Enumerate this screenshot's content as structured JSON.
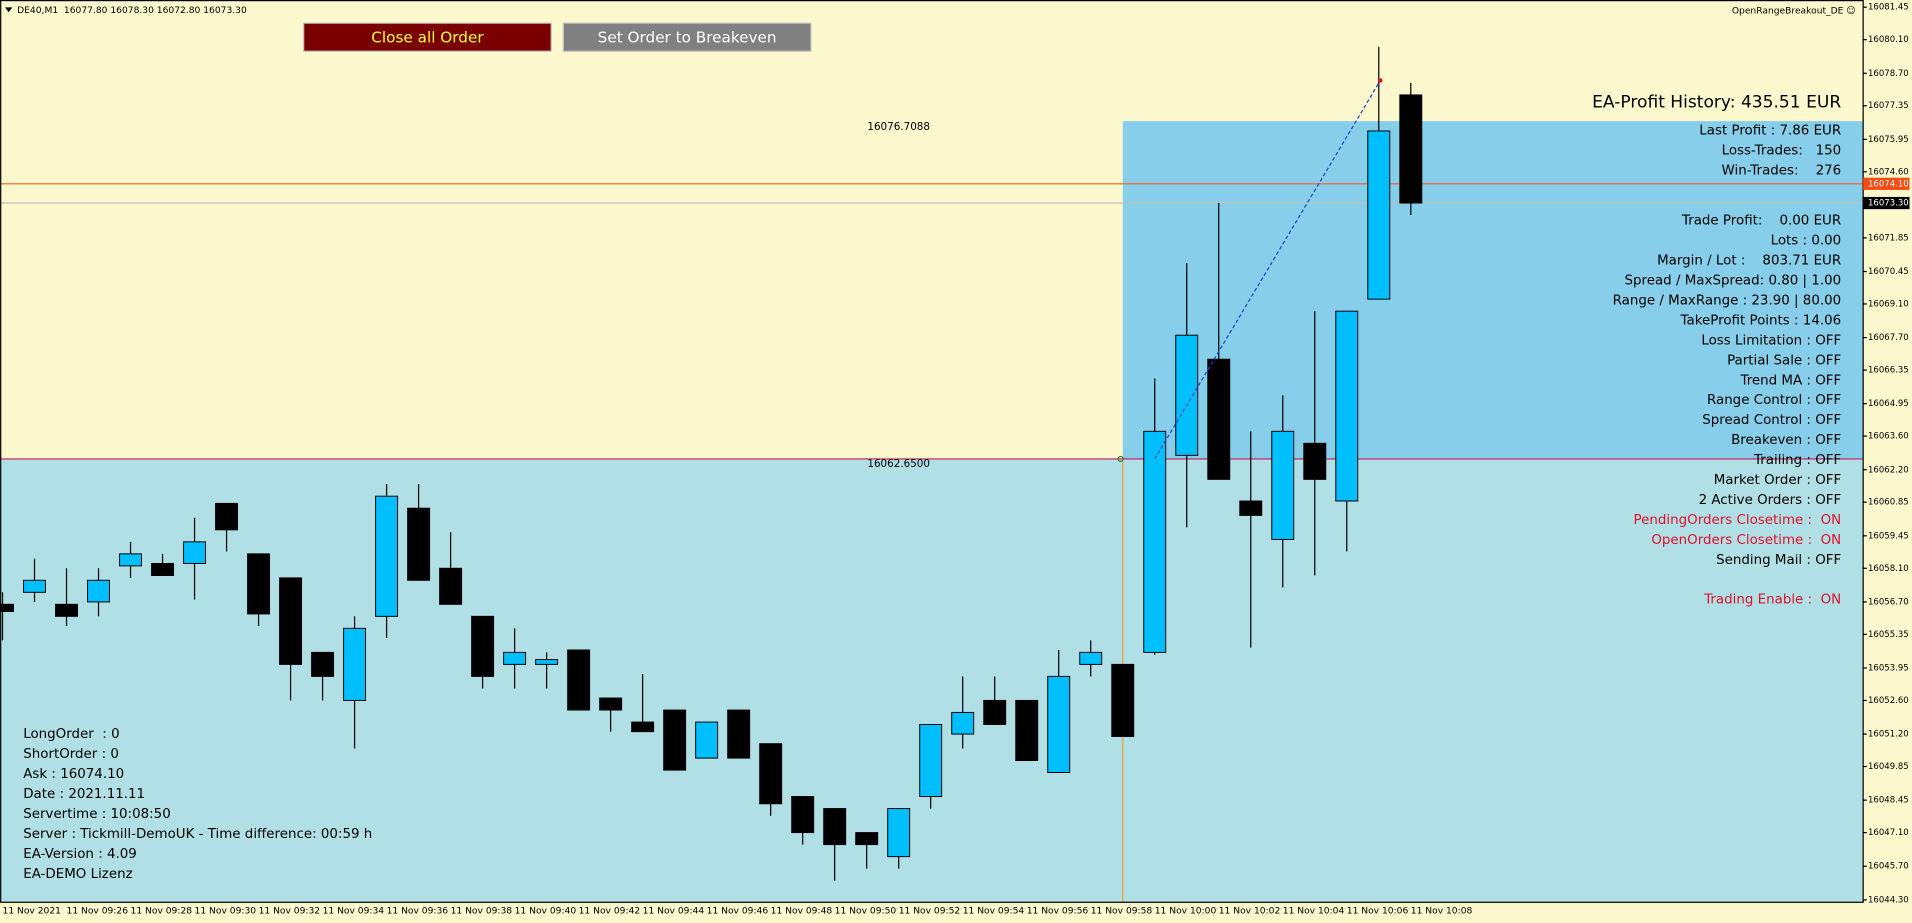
{
  "chart_data": {
    "type": "candlestick",
    "categories": [
      "11 Nov 2021",
      null,
      "11 Nov 09:26",
      null,
      "11 Nov 09:28",
      null,
      "11 Nov 09:30",
      null,
      "11 Nov 09:32",
      null,
      "11 Nov 09:34",
      null,
      "11 Nov 09:36",
      null,
      "11 Nov 09:38",
      null,
      "11 Nov 09:40",
      null,
      "11 Nov 09:42",
      null,
      "11 Nov 09:44",
      null,
      "11 Nov 09:46",
      null,
      "11 Nov 09:48",
      null,
      "11 Nov 09:50",
      null,
      "11 Nov 09:52",
      null,
      "11 Nov 09:54",
      null,
      "11 Nov 09:56",
      null,
      "11 Nov 09:58",
      null,
      "11 Nov 10:00",
      null,
      "11 Nov 10:02",
      null,
      "11 Nov 10:04",
      null,
      "11 Nov 10:06",
      null,
      "11 Nov 10:08"
    ],
    "open": [
      16056.6,
      16057.1,
      16056.6,
      16056.7,
      16058.2,
      16058.3,
      16058.3,
      16060.8,
      16058.7,
      16057.7,
      16054.6,
      16052.6,
      16056.1,
      16060.6,
      16058.1,
      16056.1,
      16054.1,
      16054.1,
      16054.7,
      16052.7,
      16051.7,
      16052.2,
      16050.2,
      16052.2,
      16050.8,
      16048.6,
      16048.1,
      16047.1,
      16046.1,
      16048.6,
      16051.2,
      16052.6,
      16052.6,
      16049.6,
      16054.1,
      16054.1,
      16054.6,
      16062.8,
      16066.8,
      16060.9,
      16059.3,
      16063.3,
      16060.9,
      16069.3,
      16077.8
    ],
    "high": [
      16057.1,
      16058.5,
      16058.1,
      16058.1,
      16059.2,
      16058.7,
      16060.2,
      16060.8,
      16058.7,
      16057.7,
      16054.6,
      16056.1,
      16061.6,
      16061.6,
      16059.6,
      16056.1,
      16055.6,
      16054.6,
      16054.7,
      16052.7,
      16053.7,
      16052.2,
      16051.7,
      16052.2,
      16050.8,
      16048.6,
      16048.1,
      16047.1,
      16048.1,
      16051.6,
      16053.6,
      16053.6,
      16052.6,
      16054.7,
      16055.1,
      16054.1,
      16066.0,
      16070.8,
      16073.3,
      16063.8,
      16065.3,
      16068.8,
      16068.8,
      16079.8,
      16078.3
    ],
    "low": [
      16055.1,
      16056.7,
      16055.7,
      16056.1,
      16057.7,
      16057.8,
      16056.8,
      16058.8,
      16055.7,
      16052.6,
      16052.6,
      16050.6,
      16055.2,
      16057.6,
      16056.6,
      16053.1,
      16053.1,
      16053.1,
      16052.2,
      16051.3,
      16051.3,
      16049.7,
      16050.2,
      16050.2,
      16047.8,
      16046.6,
      16045.1,
      16045.6,
      16045.6,
      16048.1,
      16050.6,
      16051.6,
      16050.1,
      16049.6,
      16053.6,
      16051.1,
      16054.5,
      16059.8,
      16061.8,
      16054.8,
      16057.3,
      16057.8,
      16058.8,
      16069.3,
      16072.8
    ],
    "close": [
      16056.3,
      16057.6,
      16056.1,
      16057.6,
      16058.7,
      16057.8,
      16059.2,
      16059.7,
      16056.2,
      16054.1,
      16053.6,
      16055.6,
      16061.1,
      16057.6,
      16056.6,
      16053.6,
      16054.6,
      16054.3,
      16052.2,
      16052.2,
      16051.3,
      16049.7,
      16051.7,
      16050.2,
      16048.3,
      16047.1,
      16046.6,
      16046.6,
      16048.1,
      16051.6,
      16052.1,
      16051.6,
      16050.1,
      16053.6,
      16054.6,
      16051.1,
      16063.8,
      16067.8,
      16061.8,
      16060.3,
      16063.8,
      16061.8,
      16068.8,
      16076.3,
      16073.3
    ],
    "up_color": "#00bfff",
    "down_color": "#000000",
    "ylim": [
      16044.2,
      16081.75
    ],
    "yticks": [
      16081.45,
      {
        "value": 16080.1,
        "label": "16080.10"
      },
      {
        "value": 16078.7,
        "label": "16078.70"
      },
      16077.35,
      16075.95,
      {
        "value": 16074.6,
        "label": "16074.60"
      },
      16071.85,
      16070.45,
      {
        "value": 16069.1,
        "label": "16069.10"
      },
      {
        "value": 16067.7,
        "label": "16067.70"
      },
      16066.35,
      16064.95,
      {
        "value": 16063.6,
        "label": "16063.60"
      },
      {
        "value": 16062.2,
        "label": "16062.20"
      },
      16060.85,
      16059.45,
      {
        "value": 16058.1,
        "label": "16058.10"
      },
      {
        "value": 16056.7,
        "label": "16056.70"
      },
      16055.35,
      16053.95,
      {
        "value": 16052.6,
        "label": "16052.60"
      },
      {
        "value": 16051.2,
        "label": "16051.20"
      },
      16049.85,
      16048.45,
      {
        "value": 16047.1,
        "label": "16047.10"
      },
      {
        "value": 16045.7,
        "label": "16045.70"
      },
      {
        "value": 16044.3,
        "label": "16044.30"
      }
    ],
    "range_high": 16076.7088,
    "range_low": {
      "value": 16062.65,
      "label": "16062.6500"
    },
    "ask_line": {
      "value": 16074.1,
      "label": "16074.10"
    },
    "last_line": {
      "value": 16073.3,
      "label": "16073.30"
    }
  },
  "ui": {
    "header": "DE40,M1  16077.80 16078.30 16072.80 16073.30",
    "ea_name": "OpenRangeBreakout_DE ☺",
    "buttons": [
      "Close all Order",
      "Set Order to Breakeven"
    ],
    "profit_history": "EA-Profit History: 435.51 EUR",
    "stats": [
      "Last Profit : 7.86 EUR",
      "Loss-Trades:   150",
      "Win-Trades:    276"
    ],
    "settings": [
      {
        "text": "Trade Profit:    0.00 EUR",
        "color": "#000000"
      },
      {
        "text": "Lots : 0.00",
        "color": "#000000"
      },
      {
        "text": "Margin / Lot :    803.71 EUR",
        "color": "#000000"
      },
      {
        "text": "Spread / MaxSpread: 0.80 | 1.00",
        "color": "#000000"
      },
      {
        "text": "Range / MaxRange : 23.90 | 80.00",
        "color": "#000000"
      },
      {
        "text": "TakeProfit Points : 14.06",
        "color": "#000000"
      },
      {
        "text": "Loss Limitation : OFF",
        "color": "#000000"
      },
      {
        "text": "Partial Sale : OFF",
        "color": "#000000"
      },
      {
        "text": "Trend MA : OFF",
        "color": "#000000"
      },
      {
        "text": "Range Control : OFF",
        "color": "#000000"
      },
      {
        "text": "Spread Control : OFF",
        "color": "#000000"
      },
      {
        "text": "Breakeven : OFF",
        "color": "#000000"
      },
      {
        "text": "Trailing : OFF",
        "color": "#000000"
      },
      {
        "text": "Market Order : OFF",
        "color": "#000000"
      },
      {
        "text": "2 Active Orders : OFF",
        "color": "#000000"
      },
      {
        "text": "PendingOrders Closetime :  ON",
        "color": "#e0102a"
      },
      {
        "text": "OpenOrders Closetime :  ON",
        "color": "#e0102a"
      },
      {
        "text": "Sending Mail : OFF",
        "color": "#000000"
      },
      {
        "text": "Trading Enable :  ON",
        "color": "#e0102a"
      }
    ],
    "info": [
      "LongOrder  : 0",
      "ShortOrder : 0",
      "Ask : 16074.10",
      "Date : 2021.11.11",
      "Servertime : 10:08:50",
      "Server : Tickmill-DemoUK - Time difference: 00:59 h",
      "EA-Version : 4.09",
      "EA-DEMO Lizenz"
    ]
  }
}
